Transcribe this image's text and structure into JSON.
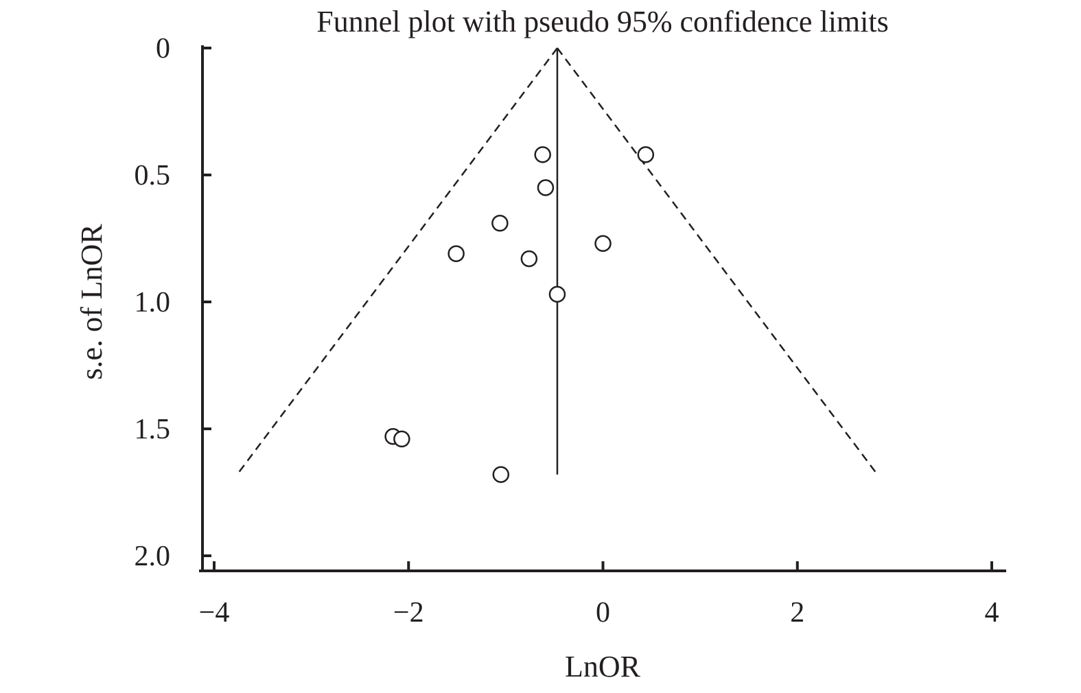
{
  "chart_data": {
    "type": "scatter",
    "title": "Funnel plot with pseudo 95% confidence limits",
    "xlabel": "LnOR",
    "ylabel": "s.e. of LnOR",
    "xlim": [
      -4,
      4
    ],
    "ylim": [
      0,
      2.0
    ],
    "y_inverted": true,
    "grid": false,
    "x_ticks": [
      -4,
      -2,
      0,
      2,
      4
    ],
    "x_tick_labels": [
      "−4",
      "−2",
      "0",
      "2",
      "4"
    ],
    "y_ticks": [
      0,
      0.5,
      1.0,
      1.5,
      2.0
    ],
    "y_tick_labels": [
      "0",
      "0.5",
      "1.0",
      "1.5",
      "2.0"
    ],
    "pooled_effect": -0.47,
    "max_se": 1.68,
    "confidence_multiplier": 1.96,
    "series": [
      {
        "points": [
          {
            "x": -0.62,
            "se": 0.42
          },
          {
            "x": 0.44,
            "se": 0.42
          },
          {
            "x": -0.59,
            "se": 0.55
          },
          {
            "x": -1.06,
            "se": 0.69
          },
          {
            "x": 0.0,
            "se": 0.77
          },
          {
            "x": -1.51,
            "se": 0.81
          },
          {
            "x": -0.76,
            "se": 0.83
          },
          {
            "x": -0.47,
            "se": 0.97
          },
          {
            "x": -2.16,
            "se": 1.53
          },
          {
            "x": -2.07,
            "se": 1.54
          },
          {
            "x": -1.05,
            "se": 1.68
          }
        ]
      }
    ]
  }
}
